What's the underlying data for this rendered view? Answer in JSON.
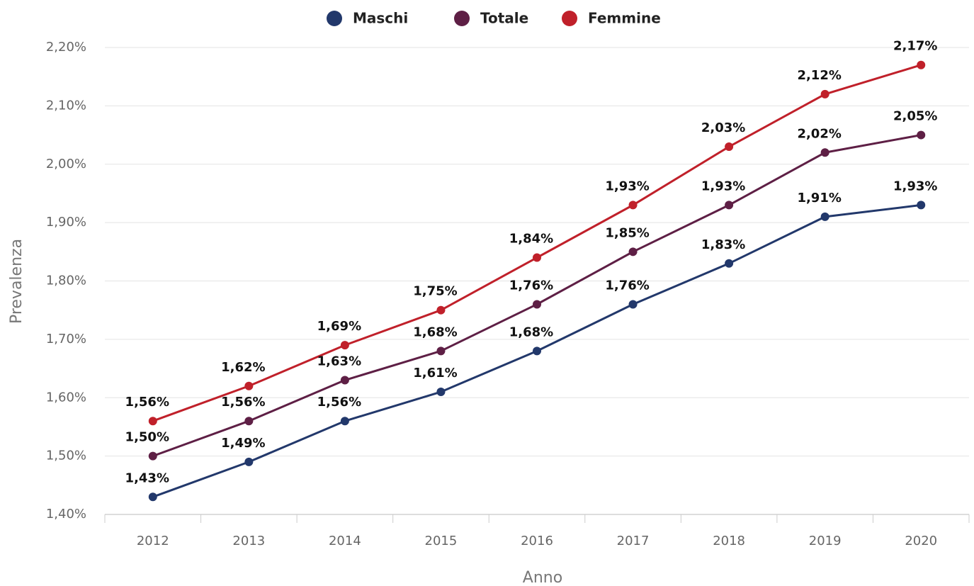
{
  "chart_data": {
    "type": "line",
    "categories": [
      "2012",
      "2013",
      "2014",
      "2015",
      "2016",
      "2017",
      "2018",
      "2019",
      "2020"
    ],
    "series": [
      {
        "name": "Maschi",
        "color": "#22386b",
        "values": [
          1.43,
          1.49,
          1.56,
          1.61,
          1.68,
          1.76,
          1.83,
          1.91,
          1.93
        ],
        "value_labels": [
          "1,43%",
          "1,49%",
          "1,56%",
          "1,61%",
          "1,68%",
          "1,76%",
          "1,83%",
          "1,91%",
          "1,93%"
        ]
      },
      {
        "name": "Totale",
        "color": "#5e1f45",
        "values": [
          1.5,
          1.56,
          1.63,
          1.68,
          1.76,
          1.85,
          1.93,
          2.02,
          2.05
        ],
        "value_labels": [
          "1,50%",
          "1,56%",
          "1,63%",
          "1,68%",
          "1,76%",
          "1,85%",
          "1,93%",
          "2,02%",
          "2,05%"
        ]
      },
      {
        "name": "Femmine",
        "color": "#c0202a",
        "values": [
          1.56,
          1.62,
          1.69,
          1.75,
          1.84,
          1.93,
          2.03,
          2.12,
          2.17
        ],
        "value_labels": [
          "1,56%",
          "1,62%",
          "1,69%",
          "1,75%",
          "1,84%",
          "1,93%",
          "2,03%",
          "2,12%",
          "2,17%"
        ]
      }
    ],
    "x_label": "Anno",
    "y_label": "Prevalenza",
    "ylim": [
      1.4,
      2.2
    ],
    "yticks": [
      {
        "value": 1.4,
        "label": "1,40%"
      },
      {
        "value": 1.5,
        "label": "1,50%"
      },
      {
        "value": 1.6,
        "label": "1,60%"
      },
      {
        "value": 1.7,
        "label": "1,70%"
      },
      {
        "value": 1.8,
        "label": "1,80%"
      },
      {
        "value": 1.9,
        "label": "1,90%"
      },
      {
        "value": 2.0,
        "label": "2,00%"
      },
      {
        "value": 2.1,
        "label": "2,10%"
      },
      {
        "value": 2.2,
        "label": "2,20%"
      }
    ],
    "grid": true,
    "legend": "top"
  }
}
